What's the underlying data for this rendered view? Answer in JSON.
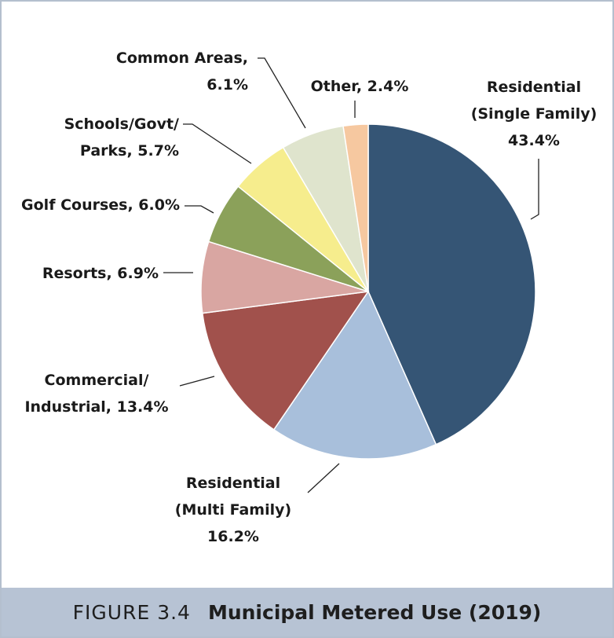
{
  "chart_data": {
    "type": "pie",
    "slices": [
      {
        "name": "Residential (Single Family)",
        "value": 43.4,
        "color": "#355575",
        "label_lines": [
          "Residential",
          "(Single Family)",
          "43.4%"
        ]
      },
      {
        "name": "Residential (Multi Family)",
        "value": 16.2,
        "color": "#a8bfdb",
        "label_lines": [
          "Residential",
          "(Multi Family)",
          "16.2%"
        ]
      },
      {
        "name": "Commercial/ Industrial",
        "value": 13.4,
        "color": "#a1514c",
        "label_lines": [
          "Commercial/",
          "Industrial, 13.4%"
        ]
      },
      {
        "name": "Resorts",
        "value": 6.9,
        "color": "#d9a6a2",
        "label_lines": [
          "Resorts, 6.9%"
        ]
      },
      {
        "name": "Golf Courses",
        "value": 6.0,
        "color": "#8ba15a",
        "label_lines": [
          "Golf Courses, 6.0%"
        ]
      },
      {
        "name": "Schools/Govt/ Parks",
        "value": 5.7,
        "color": "#f6ed8d",
        "label_lines": [
          "Schools/Govt/",
          "Parks, 5.7%"
        ]
      },
      {
        "name": "Common Areas",
        "value": 6.1,
        "color": "#dfe4cd",
        "label_lines": [
          "Common Areas,",
          "6.1%"
        ]
      },
      {
        "name": "Other",
        "value": 2.4,
        "color": "#f6c8a0",
        "label_lines": [
          "Other, 2.4%"
        ]
      }
    ]
  },
  "caption": {
    "figure": "FIGURE 3.4",
    "title": "Municipal Metered Use (2019)"
  }
}
